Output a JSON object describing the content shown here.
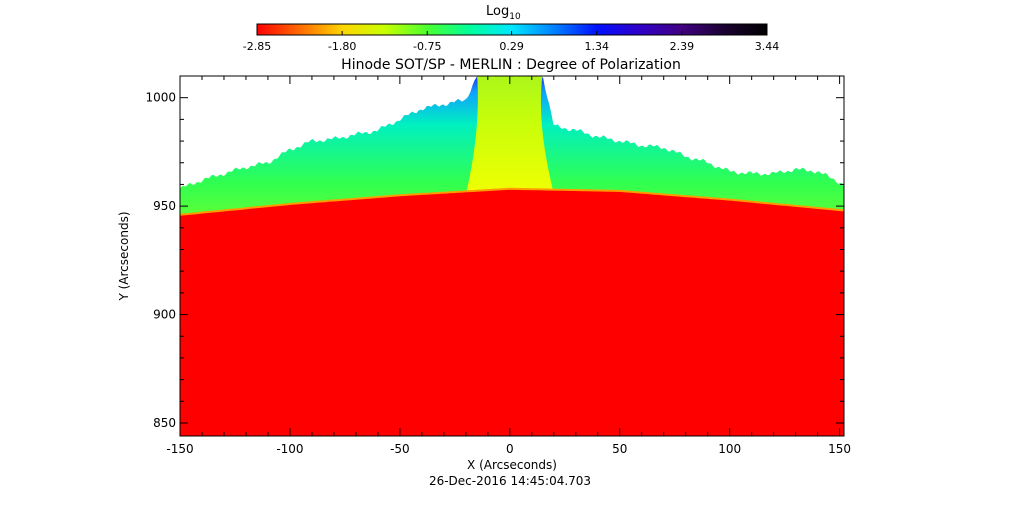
{
  "colorbar": {
    "label": "Log",
    "label_sub": "10",
    "ticks": [
      "-2.85",
      "-1.80",
      "-0.75",
      "0.29",
      "1.34",
      "2.39",
      "3.44"
    ],
    "range": [
      -2.85,
      3.44
    ],
    "colors": [
      "#ff0000",
      "#ff6a00",
      "#ffd400",
      "#c8ff00",
      "#4cff30",
      "#00ff9a",
      "#00e6ff",
      "#0080ff",
      "#0010ff",
      "#3000c8",
      "#400080",
      "#1a0030",
      "#000000"
    ]
  },
  "chart_data": {
    "type": "heatmap",
    "title": "Hinode SOT/SP - MERLIN : Degree of Polarization",
    "xlabel": "X (Arcseconds)",
    "ylabel": "Y (Arcseconds)",
    "xlim": [
      -150,
      152
    ],
    "ylim": [
      844,
      1010
    ],
    "x_ticks": [
      -150,
      -100,
      -50,
      0,
      50,
      100,
      150
    ],
    "y_ticks": [
      850,
      900,
      950,
      1000
    ],
    "x_tick_labels": [
      "-150",
      "-100",
      "-50",
      "0",
      "50",
      "100",
      "150"
    ],
    "y_tick_labels": [
      "850",
      "900",
      "950",
      "1000"
    ],
    "limb_profile": {
      "x": [
        -150,
        -100,
        -50,
        0,
        50,
        100,
        152
      ],
      "y": [
        946,
        951,
        955,
        958,
        957,
        953,
        948
      ]
    },
    "data_top_profile": {
      "x": [
        -150,
        -140,
        -130,
        -120,
        -110,
        -100,
        -90,
        -80,
        -70,
        -60,
        -50,
        -40,
        -30,
        -20,
        -15,
        15,
        20,
        30,
        40,
        50,
        60,
        70,
        80,
        90,
        100,
        110,
        120,
        130,
        140,
        152
      ],
      "y": [
        958,
        962,
        965,
        968,
        970,
        976,
        980,
        981,
        983,
        985,
        990,
        995,
        997,
        999,
        1010,
        1010,
        987,
        985,
        982,
        980,
        978,
        977,
        973,
        970,
        966,
        965,
        965,
        967,
        966,
        960
      ]
    },
    "disk_log10_value": -2.85,
    "limb_log10_value": -1.3,
    "off_limb_log10_value_max": 1.3,
    "timestamp": "26-Dec-2016 14:45:04.703"
  }
}
